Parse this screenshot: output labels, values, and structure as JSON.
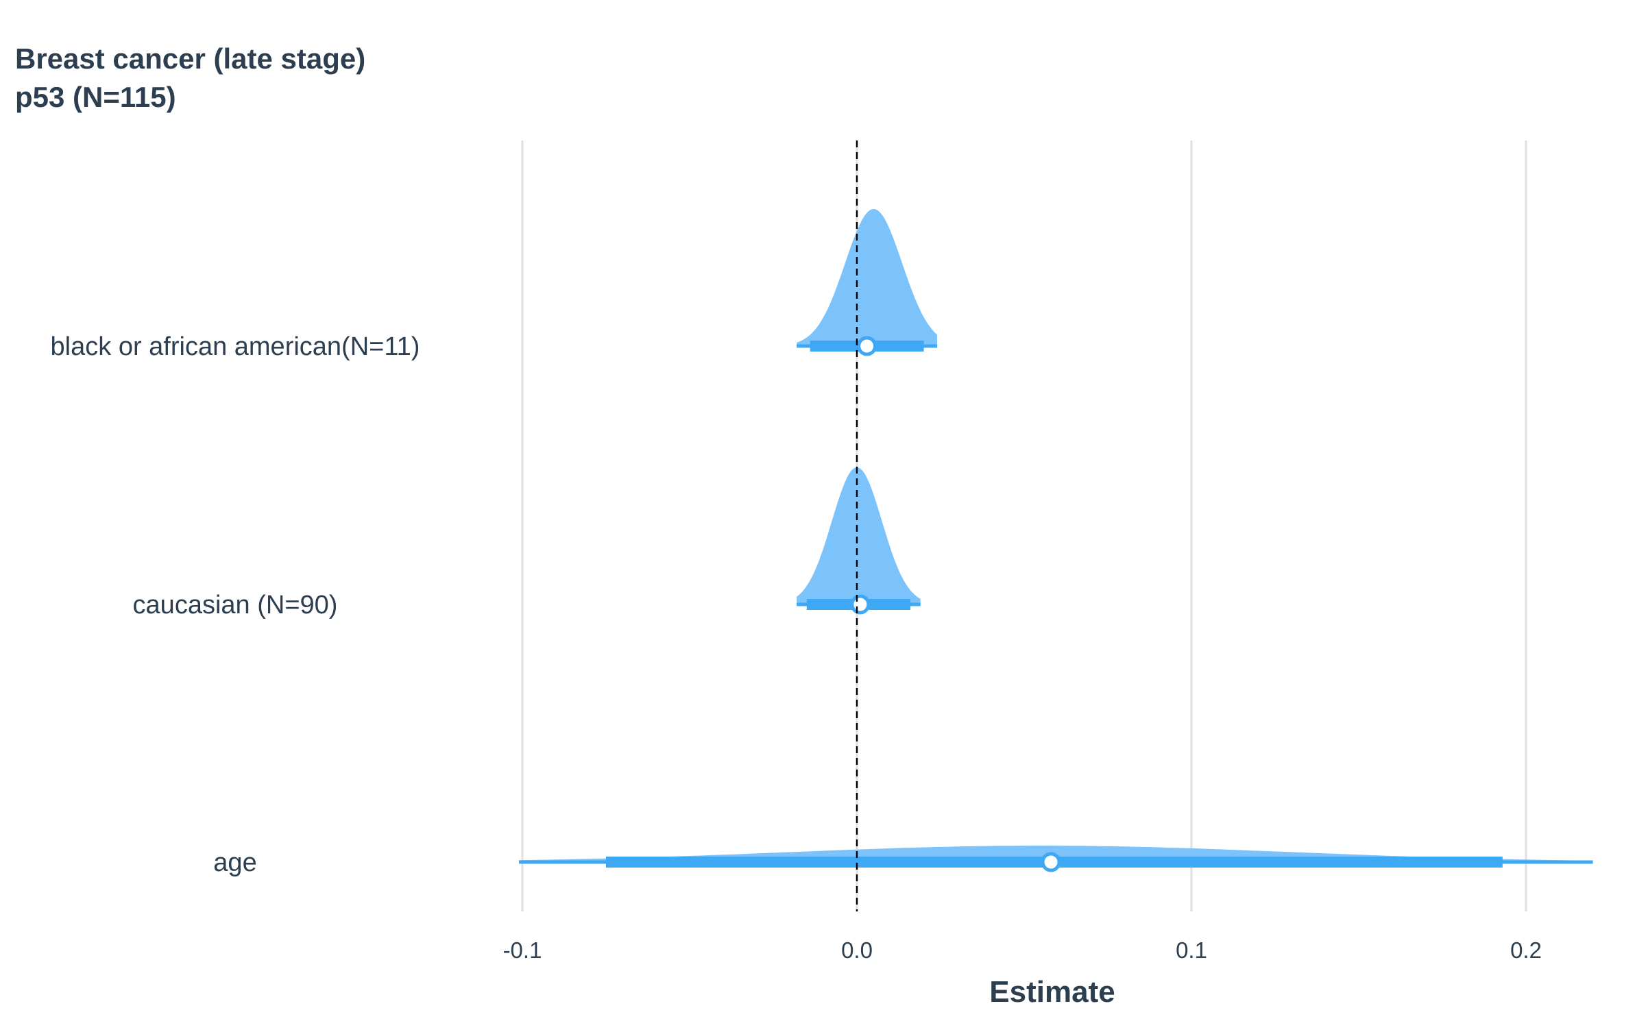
{
  "chart_data": {
    "type": "violin-forest",
    "title_lines": [
      "Breast cancer  (late stage)",
      "p53 (N=115)"
    ],
    "xlabel": "Estimate",
    "xlim": [
      -0.101,
      0.22
    ],
    "xticks": [
      -0.1,
      0.0,
      0.1,
      0.2
    ],
    "xtick_labels": [
      "-0.1",
      "0.0",
      "0.1",
      "0.2"
    ],
    "reference_line": 0,
    "grid": "vertical",
    "colors": {
      "density": "#7cc2fb",
      "interval": "#3fa8f5",
      "point_fill": "#ffffff",
      "text": "#2c3e50",
      "grid": "#e0e0e0",
      "reference": "#000000"
    },
    "rows": [
      {
        "label": "black or african american(N=11)",
        "estimate": 0.003,
        "ci_inner": [
          -0.014,
          0.02
        ],
        "ci_outer": [
          -0.018,
          0.024
        ],
        "density_sd": 0.0085,
        "density_peak": 0.005
      },
      {
        "label": "caucasian (N=90)",
        "estimate": 0.001,
        "ci_inner": [
          -0.015,
          0.016
        ],
        "ci_outer": [
          -0.018,
          0.019
        ],
        "density_sd": 0.0075,
        "density_peak": 0.0
      },
      {
        "label": "age",
        "estimate": 0.058,
        "ci_inner": [
          -0.075,
          0.193
        ],
        "ci_outer": [
          -0.101,
          0.22
        ],
        "density_sd": 0.075,
        "density_peak": 0.055
      }
    ]
  }
}
